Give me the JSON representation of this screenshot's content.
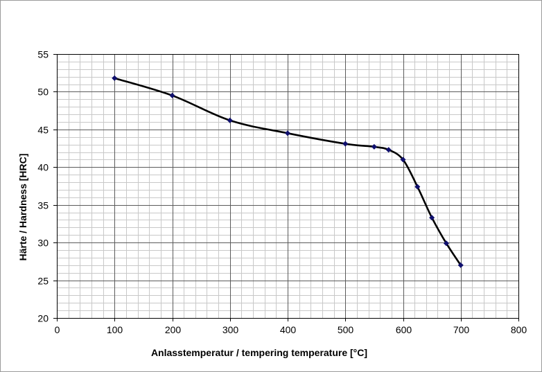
{
  "chart_data": {
    "type": "line",
    "title": "",
    "xlabel": "Anlasstemperatur / tempering temperature [°C]",
    "ylabel": "Härte / Hardness [HRC]",
    "xlim": [
      0,
      800
    ],
    "ylim": [
      20,
      55
    ],
    "x_major_ticks": [
      0,
      100,
      200,
      300,
      400,
      500,
      600,
      700,
      800
    ],
    "y_major_ticks": [
      20,
      25,
      30,
      35,
      40,
      45,
      50,
      55
    ],
    "x_minor_step": 20,
    "y_minor_step": 1,
    "grid": true,
    "legend": "none",
    "series": [
      {
        "x": [
          100,
          200,
          300,
          400,
          500,
          550,
          575,
          600,
          625,
          650,
          675,
          700
        ],
        "y": [
          51.8,
          49.5,
          46.2,
          44.5,
          43.1,
          42.7,
          42.3,
          41.0,
          37.4,
          33.3,
          29.9,
          27.0
        ]
      }
    ]
  },
  "colors": {
    "line": "#000000",
    "marker": "#10106e",
    "major_grid": "#5a5a5a",
    "minor_grid": "#c8c8c8"
  }
}
